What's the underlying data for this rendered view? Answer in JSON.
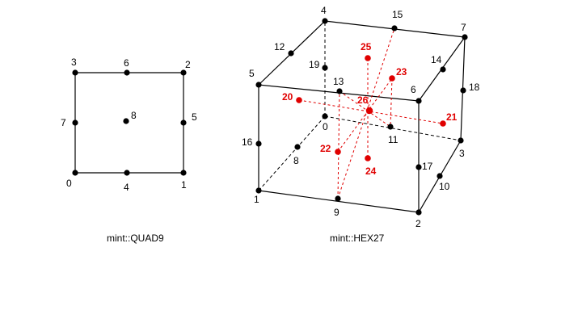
{
  "colors": {
    "corner_node": "#000000",
    "interior_node": "#e00000",
    "background": "#ffffff"
  },
  "quad9": {
    "caption": "mint::QUAD9",
    "labels": {
      "n0": "0",
      "n1": "1",
      "n2": "2",
      "n3": "3",
      "n4": "4",
      "n5": "5",
      "n6": "6",
      "n7": "7",
      "n8": "8"
    }
  },
  "hex27": {
    "caption": "mint::HEX27",
    "labels": {
      "n0": "0",
      "n1": "1",
      "n2": "2",
      "n3": "3",
      "n4": "4",
      "n5": "5",
      "n6": "6",
      "n7": "7",
      "n8": "8",
      "n9": "9",
      "n10": "10",
      "n11": "11",
      "n12": "12",
      "n13": "13",
      "n14": "14",
      "n15": "15",
      "n16": "16",
      "n17": "17",
      "n18": "18",
      "n19": "19",
      "n20": "20",
      "n21": "21",
      "n22": "22",
      "n23": "23",
      "n24": "24",
      "n25": "25",
      "n26": "26"
    }
  }
}
